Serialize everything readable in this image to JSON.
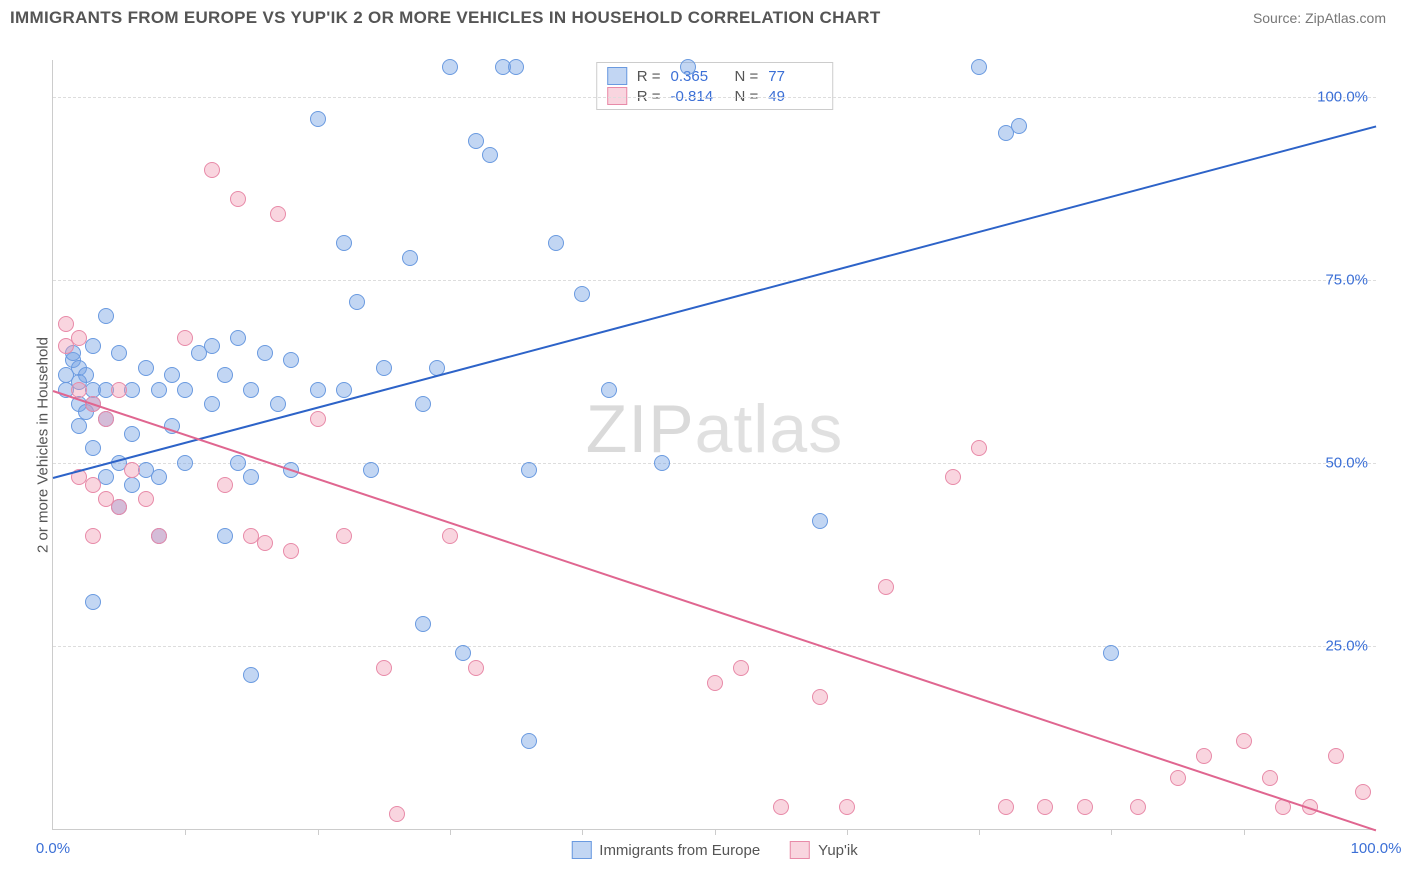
{
  "title": "IMMIGRANTS FROM EUROPE VS YUP'IK 2 OR MORE VEHICLES IN HOUSEHOLD CORRELATION CHART",
  "source_label": "Source: ",
  "source_name": "ZipAtlas.com",
  "ylabel": "2 or more Vehicles in Household",
  "watermark_a": "ZIP",
  "watermark_b": "atlas",
  "chart": {
    "type": "scatter-with-trend",
    "xlim": [
      0,
      100
    ],
    "ylim": [
      0,
      105
    ],
    "x_ticks_labeled": [
      {
        "v": 0,
        "label": "0.0%"
      },
      {
        "v": 100,
        "label": "100.0%"
      }
    ],
    "x_ticks_minor": [
      10,
      20,
      30,
      40,
      50,
      60,
      70,
      80,
      90
    ],
    "y_ticks": [
      {
        "v": 25,
        "label": "25.0%"
      },
      {
        "v": 50,
        "label": "50.0%"
      },
      {
        "v": 75,
        "label": "75.0%"
      },
      {
        "v": 100,
        "label": "100.0%"
      }
    ],
    "grid_color": "#dddddd",
    "background_color": "#ffffff",
    "series": [
      {
        "key": "europe",
        "label": "Immigrants from Europe",
        "color_fill": "rgba(120,165,228,0.45)",
        "color_stroke": "#6a9ae0",
        "trend_color": "#2d63c8",
        "marker_radius": 8,
        "r_label": "R = ",
        "r_value": "0.365",
        "n_label": "N = ",
        "n_value": "77",
        "trend": {
          "x1": 0,
          "y1": 48,
          "x2": 100,
          "y2": 96
        },
        "points": [
          [
            1,
            62
          ],
          [
            1,
            60
          ],
          [
            1.5,
            64
          ],
          [
            2,
            63
          ],
          [
            2,
            58
          ],
          [
            2,
            55
          ],
          [
            2.5,
            62
          ],
          [
            2.5,
            57
          ],
          [
            3,
            66
          ],
          [
            3,
            60
          ],
          [
            3,
            52
          ],
          [
            3,
            31
          ],
          [
            4,
            70
          ],
          [
            4,
            60
          ],
          [
            4,
            48
          ],
          [
            5,
            65
          ],
          [
            5,
            50
          ],
          [
            5,
            44
          ],
          [
            6,
            60
          ],
          [
            6,
            47
          ],
          [
            7,
            63
          ],
          [
            7,
            49
          ],
          [
            8,
            60
          ],
          [
            8,
            48
          ],
          [
            8,
            40
          ],
          [
            9,
            62
          ],
          [
            9,
            55
          ],
          [
            10,
            60
          ],
          [
            10,
            50
          ],
          [
            11,
            65
          ],
          [
            12,
            66
          ],
          [
            12,
            58
          ],
          [
            13,
            62
          ],
          [
            13,
            40
          ],
          [
            14,
            67
          ],
          [
            14,
            50
          ],
          [
            15,
            60
          ],
          [
            15,
            48
          ],
          [
            15,
            21
          ],
          [
            16,
            65
          ],
          [
            17,
            58
          ],
          [
            18,
            64
          ],
          [
            18,
            49
          ],
          [
            20,
            60
          ],
          [
            20,
            97
          ],
          [
            22,
            80
          ],
          [
            22,
            60
          ],
          [
            23,
            72
          ],
          [
            24,
            49
          ],
          [
            25,
            63
          ],
          [
            27,
            78
          ],
          [
            28,
            58
          ],
          [
            28,
            28
          ],
          [
            29,
            63
          ],
          [
            30,
            104
          ],
          [
            31,
            24
          ],
          [
            32,
            94
          ],
          [
            33,
            92
          ],
          [
            34,
            104
          ],
          [
            35,
            104
          ],
          [
            36,
            49
          ],
          [
            36,
            12
          ],
          [
            38,
            80
          ],
          [
            40,
            73
          ],
          [
            42,
            60
          ],
          [
            46,
            50
          ],
          [
            48,
            104
          ],
          [
            58,
            42
          ],
          [
            70,
            104
          ],
          [
            72,
            95
          ],
          [
            73,
            96
          ],
          [
            80,
            24
          ],
          [
            1.5,
            65
          ],
          [
            2,
            61
          ],
          [
            3,
            58
          ],
          [
            4,
            56
          ],
          [
            6,
            54
          ]
        ]
      },
      {
        "key": "yupik",
        "label": "Yup'ik",
        "color_fill": "rgba(240,150,175,0.40)",
        "color_stroke": "#e88aa8",
        "trend_color": "#e06690",
        "marker_radius": 8,
        "r_label": "R = ",
        "r_value": "-0.814",
        "n_label": "N = ",
        "n_value": "49",
        "trend": {
          "x1": 0,
          "y1": 60,
          "x2": 100,
          "y2": 0
        },
        "points": [
          [
            1,
            69
          ],
          [
            1,
            66
          ],
          [
            2,
            67
          ],
          [
            2,
            60
          ],
          [
            2,
            48
          ],
          [
            3,
            58
          ],
          [
            3,
            47
          ],
          [
            3,
            40
          ],
          [
            4,
            56
          ],
          [
            4,
            45
          ],
          [
            5,
            60
          ],
          [
            5,
            44
          ],
          [
            6,
            49
          ],
          [
            7,
            45
          ],
          [
            8,
            40
          ],
          [
            10,
            67
          ],
          [
            12,
            90
          ],
          [
            13,
            47
          ],
          [
            14,
            86
          ],
          [
            15,
            40
          ],
          [
            16,
            39
          ],
          [
            17,
            84
          ],
          [
            18,
            38
          ],
          [
            20,
            56
          ],
          [
            22,
            40
          ],
          [
            25,
            22
          ],
          [
            26,
            2
          ],
          [
            30,
            40
          ],
          [
            32,
            22
          ],
          [
            50,
            20
          ],
          [
            52,
            22
          ],
          [
            55,
            3
          ],
          [
            58,
            18
          ],
          [
            60,
            3
          ],
          [
            63,
            33
          ],
          [
            68,
            48
          ],
          [
            70,
            52
          ],
          [
            72,
            3
          ],
          [
            75,
            3
          ],
          [
            78,
            3
          ],
          [
            82,
            3
          ],
          [
            85,
            7
          ],
          [
            87,
            10
          ],
          [
            90,
            12
          ],
          [
            92,
            7
          ],
          [
            93,
            3
          ],
          [
            95,
            3
          ],
          [
            97,
            10
          ],
          [
            99,
            5
          ]
        ]
      }
    ]
  }
}
